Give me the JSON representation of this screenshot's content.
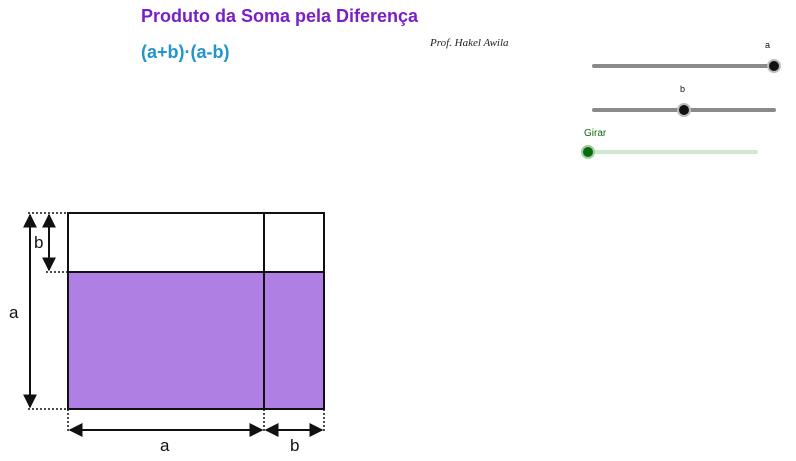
{
  "header": {
    "title": "Produto da Soma pela Diferença",
    "subtitle": "(a+b)·(a-b)",
    "author": "Prof. Hakel Awila"
  },
  "sliders": [
    {
      "name": "a",
      "label": "a",
      "value": 1.0
    },
    {
      "name": "b",
      "label": "b",
      "value": 0.5
    },
    {
      "name": "girar",
      "label": "Girar",
      "value": 0.0
    }
  ],
  "diagram": {
    "fill_color": "#b07fe3",
    "labels": {
      "left_b": "b",
      "left_a": "a",
      "bottom_a": "a",
      "bottom_b": "b"
    }
  }
}
